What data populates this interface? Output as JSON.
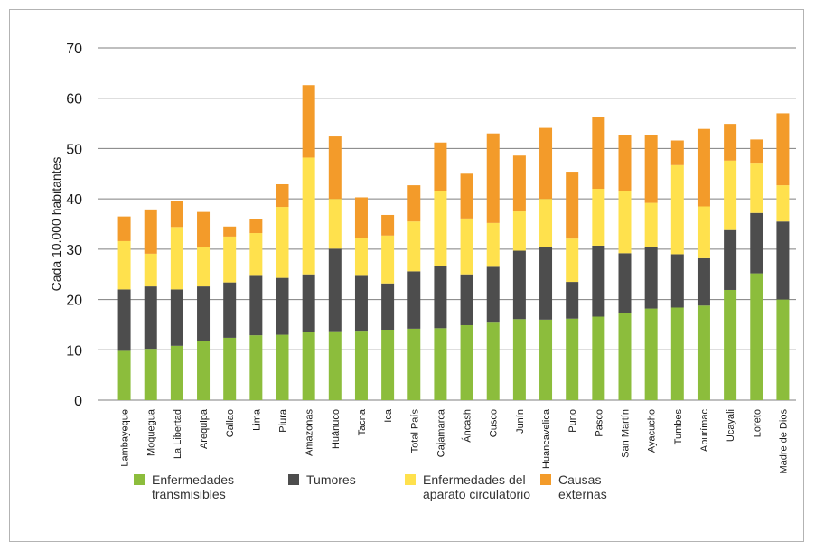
{
  "chart_data": {
    "type": "bar",
    "stacked": true,
    "title": "",
    "xlabel": "",
    "ylabel": "Cada 10.000 habitantes",
    "ylim": [
      0,
      70
    ],
    "yticks": [
      0,
      10,
      20,
      30,
      40,
      50,
      60,
      70
    ],
    "grid": true,
    "legend_position": "bottom",
    "categories": [
      "Lambayeque",
      "Moquegua",
      "La Libertad",
      "Arequipa",
      "Callao",
      "Lima",
      "Piura",
      "Amazonas",
      "Huánuco",
      "Tacna",
      "Ica",
      "Total País",
      "Cajamarca",
      "Áncash",
      "Cusco",
      "Junín",
      "Huancavelica",
      "Puno",
      "Pasco",
      "San Martín",
      "Ayacucho",
      "Tumbes",
      "Apurímac",
      "Ucayali",
      "Loreto",
      "Madre de Dios"
    ],
    "series": [
      {
        "name": "Enfermedades transmisibles",
        "color": "#8cbd3c",
        "values": [
          9.8,
          10.2,
          10.8,
          11.7,
          12.4,
          12.9,
          13.0,
          13.6,
          13.7,
          13.8,
          14.0,
          14.2,
          14.3,
          14.9,
          15.4,
          16.1,
          16.0,
          16.2,
          16.6,
          17.4,
          18.2,
          18.4,
          18.8,
          21.9,
          25.2,
          20.0
        ]
      },
      {
        "name": "Tumores",
        "color": "#4d4d4d",
        "values": [
          12.2,
          12.4,
          11.2,
          10.9,
          11.0,
          11.8,
          11.3,
          11.4,
          16.4,
          10.9,
          9.2,
          11.4,
          12.4,
          10.1,
          11.1,
          13.6,
          14.4,
          7.3,
          14.1,
          11.8,
          12.3,
          10.6,
          9.4,
          11.9,
          12.0,
          15.5
        ]
      },
      {
        "name": "Enfermedades del aparato circulatorio",
        "color": "#ffe14d",
        "values": [
          9.6,
          6.5,
          12.4,
          7.8,
          9.1,
          8.5,
          14.1,
          23.2,
          9.9,
          7.5,
          9.5,
          9.9,
          14.8,
          11.1,
          8.7,
          7.8,
          9.6,
          8.6,
          11.3,
          12.4,
          8.7,
          17.7,
          10.3,
          13.8,
          9.8,
          7.2
        ]
      },
      {
        "name": "Causas externas",
        "color": "#f39b2a",
        "values": [
          4.9,
          8.8,
          5.2,
          7.0,
          2.0,
          2.7,
          4.5,
          14.4,
          12.4,
          8.1,
          4.1,
          7.2,
          9.7,
          8.9,
          17.8,
          11.1,
          14.1,
          13.3,
          14.2,
          11.1,
          13.4,
          4.9,
          15.4,
          7.3,
          4.8,
          14.3
        ]
      }
    ],
    "legend": [
      {
        "line1": "Enfermedades",
        "line2": "transmisibles",
        "color": "#8cbd3c"
      },
      {
        "line1": "Tumores",
        "line2": "",
        "color": "#4d4d4d"
      },
      {
        "line1": "Enfermedades del",
        "line2": "aparato circulatorio",
        "color": "#ffe14d"
      },
      {
        "line1": "Causas",
        "line2": "externas",
        "color": "#f39b2a"
      }
    ]
  }
}
